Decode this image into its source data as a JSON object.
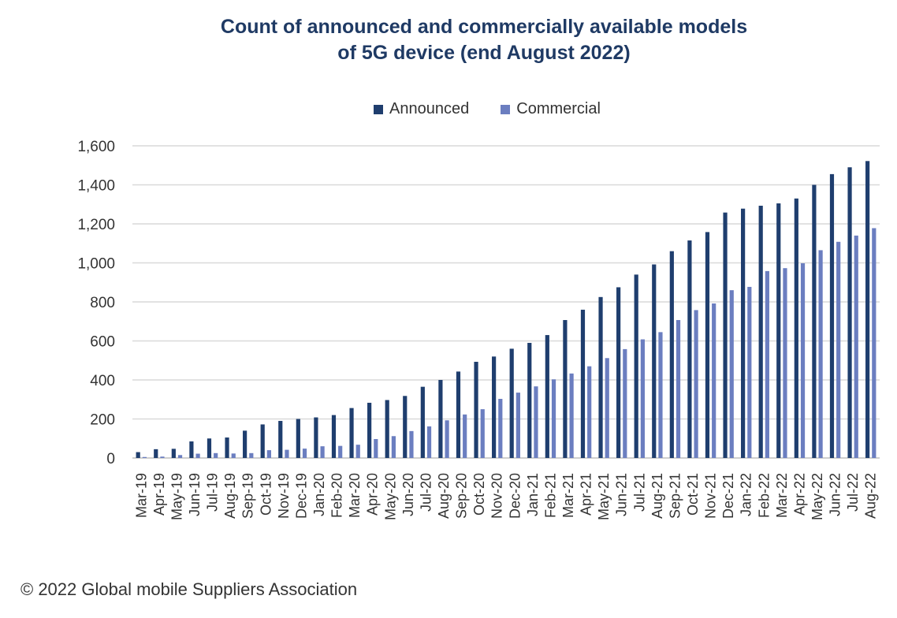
{
  "chart_data": {
    "type": "bar",
    "title_lines": [
      "Count of announced and commercially available models",
      "of 5G device (end August 2022)"
    ],
    "categories": [
      "Mar-19",
      "Apr-19",
      "May-19",
      "Jun-19",
      "Jul-19",
      "Aug-19",
      "Sep-19",
      "Oct-19",
      "Nov-19",
      "Dec-19",
      "Jan-20",
      "Feb-20",
      "Mar-20",
      "Apr-20",
      "May-20",
      "Jun-20",
      "Jul-20",
      "Aug-20",
      "Sep-20",
      "Oct-20",
      "Nov-20",
      "Dec-20",
      "Jan-21",
      "Feb-21",
      "Mar-21",
      "Apr-21",
      "May-21",
      "Jun-21",
      "Jul-21",
      "Aug-21",
      "Sep-21",
      "Oct-21",
      "Nov-21",
      "Dec-21",
      "Jan-22",
      "Feb-22",
      "Mar-22",
      "Apr-22",
      "May-22",
      "Jun-22",
      "Jul-22",
      "Aug-22"
    ],
    "series": [
      {
        "name": "Announced",
        "color": "#1f3e6e",
        "values": [
          30,
          45,
          47,
          85,
          100,
          105,
          140,
          172,
          190,
          200,
          208,
          220,
          256,
          283,
          297,
          318,
          365,
          400,
          443,
          493,
          520,
          560,
          590,
          630,
          707,
          760,
          825,
          875,
          940,
          992,
          1060,
          1115,
          1158,
          1258,
          1278,
          1293,
          1305,
          1330,
          1400,
          1455,
          1490,
          1522
        ]
      },
      {
        "name": "Commercial",
        "color": "#6b7ec0",
        "values": [
          5,
          7,
          15,
          22,
          25,
          23,
          25,
          40,
          42,
          48,
          60,
          62,
          68,
          97,
          112,
          138,
          162,
          193,
          223,
          250,
          303,
          335,
          367,
          403,
          433,
          470,
          512,
          558,
          608,
          645,
          707,
          758,
          792,
          860,
          877,
          958,
          973,
          998,
          1065,
          1108,
          1140,
          1178
        ]
      }
    ],
    "yticks": [
      "0",
      "200",
      "400",
      "600",
      "800",
      "1,000",
      "1,200",
      "1,400",
      "1,600"
    ],
    "ylim": [
      0,
      1600
    ],
    "grid": true,
    "legend_position": "top-center"
  },
  "footer": "© 2022 Global mobile Suppliers Association"
}
